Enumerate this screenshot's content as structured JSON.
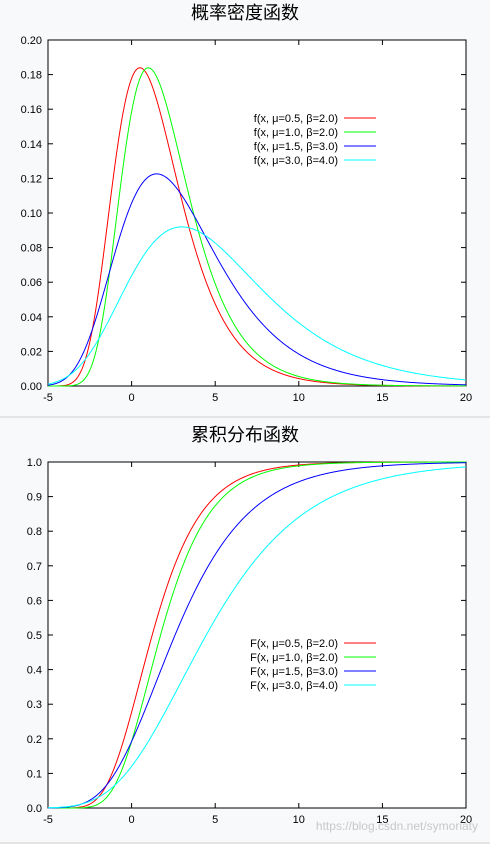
{
  "watermark": "https://blog.csdn.net/symoriaty",
  "colors": {
    "series": [
      "#ff0000",
      "#00ff00",
      "#0000ff",
      "#00ffff"
    ]
  },
  "chart_data": [
    {
      "type": "line",
      "title": "概率密度函数",
      "function": "gumbel_pdf",
      "xlim": [
        -5,
        20
      ],
      "ylim": [
        0,
        0.2
      ],
      "xticks": [
        "-5",
        "0",
        "5",
        "10",
        "15",
        "20"
      ],
      "yticks": [
        "0.00",
        "0.02",
        "0.04",
        "0.06",
        "0.08",
        "0.10",
        "0.12",
        "0.14",
        "0.16",
        "0.18",
        "0.20"
      ],
      "legend_position": "top-right",
      "series": [
        {
          "name": "f(x, μ=0.5, β=2.0)",
          "mu": 0.5,
          "beta": 2.0
        },
        {
          "name": "f(x, μ=1.0, β=2.0)",
          "mu": 1.0,
          "beta": 2.0
        },
        {
          "name": "f(x, μ=1.5, β=3.0)",
          "mu": 1.5,
          "beta": 3.0
        },
        {
          "name": "f(x, μ=3.0, β=4.0)",
          "mu": 3.0,
          "beta": 4.0
        }
      ]
    },
    {
      "type": "line",
      "title": "累积分布函数",
      "function": "gumbel_cdf",
      "xlim": [
        -5,
        20
      ],
      "ylim": [
        0,
        1.0
      ],
      "xticks": [
        "-5",
        "0",
        "5",
        "10",
        "15",
        "20"
      ],
      "yticks": [
        "0.0",
        "0.1",
        "0.2",
        "0.3",
        "0.4",
        "0.5",
        "0.6",
        "0.7",
        "0.8",
        "0.9",
        "1.0"
      ],
      "legend_position": "center-right",
      "series": [
        {
          "name": "F(x, μ=0.5, β=2.0)",
          "mu": 0.5,
          "beta": 2.0
        },
        {
          "name": "F(x, μ=1.0, β=2.0)",
          "mu": 1.0,
          "beta": 2.0
        },
        {
          "name": "F(x, μ=1.5, β=3.0)",
          "mu": 1.5,
          "beta": 3.0
        },
        {
          "name": "F(x, μ=3.0, β=4.0)",
          "mu": 3.0,
          "beta": 4.0
        }
      ]
    }
  ]
}
